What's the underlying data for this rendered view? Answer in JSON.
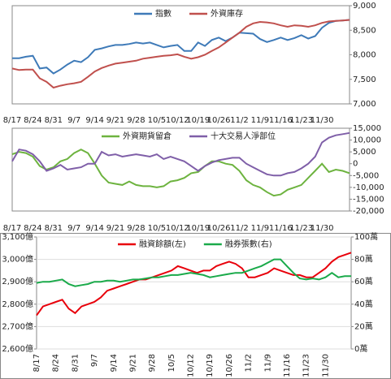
{
  "chart_data": [
    {
      "type": "line",
      "y_axis_position": "right",
      "legend": "top",
      "grid": false,
      "categories": [
        "8/17",
        null,
        null,
        "8/24",
        null,
        null,
        "8/31",
        null,
        null,
        "9/7",
        null,
        null,
        "9/14",
        null,
        null,
        "9/21",
        null,
        null,
        "9/28",
        null,
        null,
        "10/5",
        null,
        null,
        "10/12",
        null,
        null,
        "10/19",
        null,
        null,
        "10/26",
        null,
        null,
        "11/2",
        null,
        null,
        "11/9",
        null,
        null,
        "11/16",
        null,
        null,
        "11/23",
        null,
        null,
        "11/30",
        null,
        null,
        null,
        null
      ],
      "ylim": [
        7000,
        9000
      ],
      "yticks": [
        {
          "value": 7000,
          "label": "7,000"
        },
        {
          "value": 7500,
          "label": "7,500"
        },
        {
          "value": 8000,
          "label": "8,000"
        },
        {
          "value": 8500,
          "label": "8,500"
        },
        {
          "value": 9000,
          "label": "9,000"
        }
      ],
      "series": [
        {
          "name": "指數",
          "color": "#3e7ab8",
          "values": [
            7930,
            7930,
            7960,
            7980,
            7720,
            7740,
            7620,
            7700,
            7800,
            7880,
            7850,
            7950,
            8100,
            8130,
            8170,
            8200,
            8200,
            8220,
            8250,
            8230,
            8250,
            8200,
            8150,
            8180,
            8200,
            8080,
            8080,
            8250,
            8180,
            8300,
            8350,
            8280,
            8350,
            8450,
            8440,
            8430,
            8320,
            8260,
            8300,
            8350,
            8300,
            8340,
            8400,
            8330,
            8380,
            8550,
            8650,
            8690,
            8700,
            8710
          ]
        },
        {
          "name": "外資庫存",
          "color": "#c0504d",
          "values": [
            7720,
            7690,
            7700,
            7700,
            7520,
            7450,
            7330,
            7370,
            7400,
            7420,
            7450,
            7550,
            7660,
            7730,
            7780,
            7820,
            7840,
            7860,
            7880,
            7920,
            7940,
            7960,
            7980,
            7990,
            8010,
            7960,
            7920,
            7950,
            8000,
            8080,
            8150,
            8250,
            8350,
            8450,
            8570,
            8640,
            8670,
            8660,
            8640,
            8600,
            8570,
            8600,
            8590,
            8570,
            8600,
            8650,
            8680,
            8690,
            8700,
            8710
          ]
        }
      ]
    },
    {
      "type": "line",
      "y_axis_position": "right",
      "legend": "top",
      "grid": false,
      "categories": [
        "8/17",
        null,
        null,
        "8/24",
        null,
        null,
        "8/31",
        null,
        null,
        "9/7",
        null,
        null,
        "9/14",
        null,
        null,
        "9/21",
        null,
        null,
        "9/28",
        null,
        null,
        "10/5",
        null,
        null,
        "10/12",
        null,
        null,
        "10/19",
        null,
        null,
        "10/26",
        null,
        null,
        "11/2",
        null,
        null,
        "11/9",
        null,
        null,
        "11/16",
        null,
        null,
        "11/23",
        null,
        null,
        "11/30",
        null,
        null,
        null,
        null
      ],
      "ylim": [
        -20000,
        15000
      ],
      "yticks": [
        {
          "value": -20000,
          "label": "-20,000"
        },
        {
          "value": -15000,
          "label": "-15,000"
        },
        {
          "value": -10000,
          "label": "-10,000"
        },
        {
          "value": -5000,
          "label": "-5,000"
        },
        0,
        {
          "value": 5000,
          "label": "5,000"
        },
        {
          "value": 10000,
          "label": "10,000"
        },
        {
          "value": 15000,
          "label": "15,000"
        }
      ],
      "series": [
        {
          "name": "外資期貨留倉",
          "color": "#6db33f",
          "values": [
            4000,
            5000,
            4500,
            3000,
            -1000,
            -2500,
            -1500,
            1000,
            2000,
            4500,
            6000,
            4500,
            0,
            -5000,
            -8000,
            -8500,
            -9000,
            -7500,
            -9000,
            -9500,
            -9500,
            -10000,
            -9500,
            -7500,
            -7000,
            -6000,
            -4000,
            -3500,
            -1000,
            1000,
            1000,
            0,
            -500,
            -3000,
            -7000,
            -9000,
            -10000,
            -12000,
            -13500,
            -13000,
            -11000,
            -10000,
            -9000,
            -6000,
            -3000,
            0,
            -3500,
            -2500,
            -3000,
            -4000
          ]
        },
        {
          "name": "十大交易人淨部位",
          "color": "#7f5fa8",
          "values": [
            1000,
            6000,
            5500,
            4000,
            1000,
            -3000,
            -2000,
            -500,
            -2500,
            -2000,
            -1500,
            0,
            0,
            5000,
            3500,
            4000,
            3000,
            3500,
            4000,
            3500,
            3000,
            4000,
            2000,
            3000,
            2000,
            1000,
            -1000,
            -3000,
            -1000,
            500,
            1500,
            2000,
            2500,
            2500,
            0,
            -1500,
            -3000,
            -4500,
            -5000,
            -5000,
            -4000,
            -3500,
            -2000,
            0,
            3000,
            9000,
            11000,
            12000,
            12500,
            13000
          ]
        }
      ]
    },
    {
      "type": "line",
      "y_axis_position": "left",
      "legend": "top",
      "grid": true,
      "categories": [
        "8/17",
        null,
        null,
        "8/24",
        null,
        null,
        "8/31",
        null,
        null,
        "9/7",
        null,
        null,
        "9/14",
        null,
        null,
        "9/21",
        null,
        null,
        "9/28",
        null,
        null,
        "10/5",
        null,
        null,
        "10/12",
        null,
        null,
        "10/19",
        null,
        null,
        "10/26",
        null,
        null,
        "11/2",
        null,
        null,
        "11/9",
        null,
        null,
        "11/16",
        null,
        null,
        "11/23",
        null,
        null,
        "11/30",
        null,
        null,
        null,
        null
      ],
      "ylim": [
        2600,
        3100
      ],
      "yticks": [
        {
          "value": 2600,
          "label": "2,600億"
        },
        {
          "value": 2700,
          "label": "2,700億"
        },
        {
          "value": 2800,
          "label": "2,800億"
        },
        {
          "value": 2900,
          "label": "2,900億"
        },
        {
          "value": 3000,
          "label": "3,000億"
        },
        {
          "value": 3100,
          "label": "3,100億"
        }
      ],
      "y2lim": [
        0,
        100
      ],
      "y2ticks": [
        {
          "value": 0,
          "label": "0萬"
        },
        {
          "value": 20,
          "label": "20萬"
        },
        {
          "value": 40,
          "label": "40萬"
        },
        {
          "value": 60,
          "label": "60萬"
        },
        {
          "value": 80,
          "label": "80萬"
        },
        {
          "value": 100,
          "label": "100萬"
        }
      ],
      "series": [
        {
          "name": "融資餘額(左)",
          "color": "#e8000b",
          "values": [
            2750,
            2790,
            2800,
            2810,
            2820,
            2780,
            2760,
            2790,
            2800,
            2810,
            2830,
            2860,
            2870,
            2880,
            2890,
            2900,
            2910,
            2910,
            2920,
            2930,
            2940,
            2950,
            2970,
            2960,
            2950,
            2940,
            2950,
            2950,
            2970,
            2980,
            2990,
            2980,
            2960,
            2920,
            2920,
            2930,
            2940,
            2960,
            2950,
            2940,
            2930,
            2930,
            2920,
            2920,
            2940,
            2960,
            2990,
            3010,
            3020,
            3030
          ]
        },
        {
          "name": "融券張數(右)",
          "color": "#1aaa4a",
          "axis": "y2",
          "values": [
            59,
            60,
            60,
            61,
            62,
            58,
            56,
            57,
            58,
            60,
            60,
            61,
            61,
            60,
            61,
            62,
            62,
            63,
            64,
            64,
            65,
            66,
            66,
            67,
            68,
            67,
            66,
            64,
            65,
            66,
            67,
            68,
            68,
            70,
            72,
            74,
            77,
            80,
            80,
            74,
            68,
            63,
            62,
            63,
            62,
            64,
            68,
            64,
            65,
            65
          ]
        }
      ]
    }
  ]
}
